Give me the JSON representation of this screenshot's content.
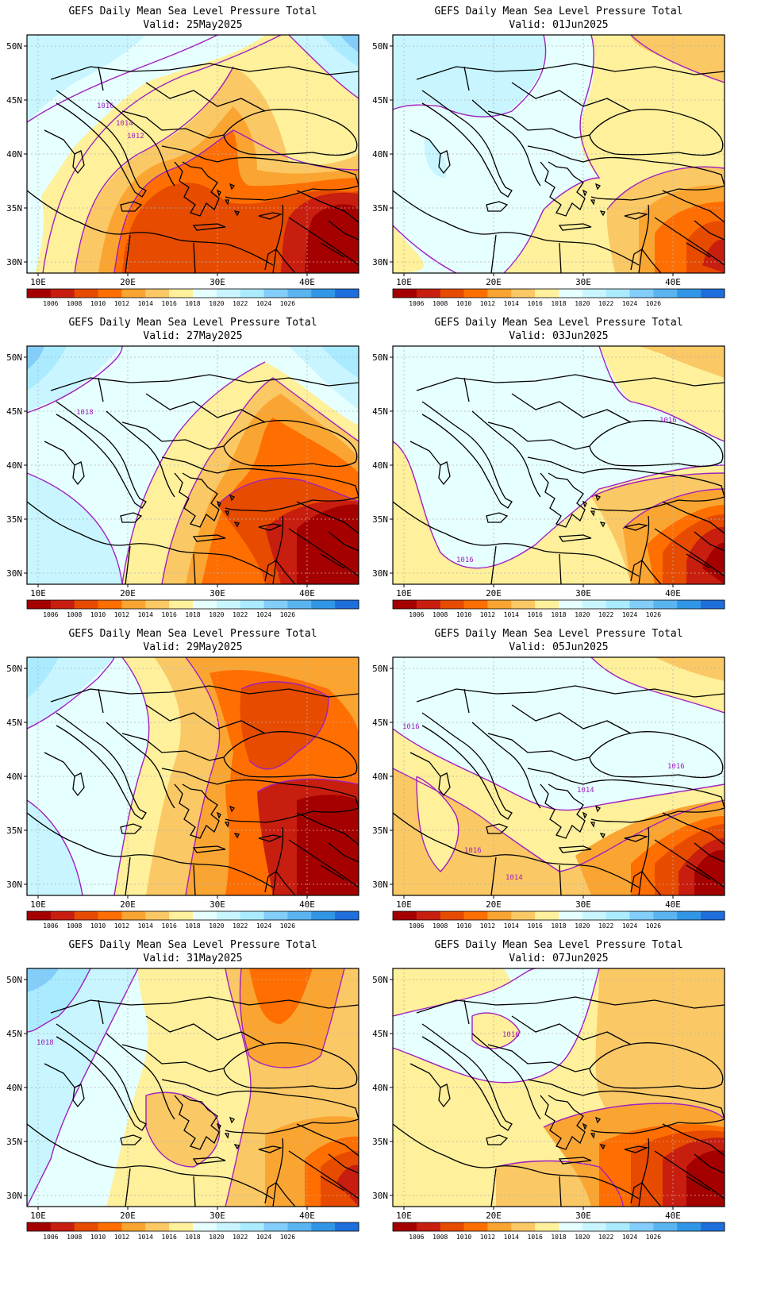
{
  "colors": {
    "levels": [
      "#a50000",
      "#c81e0f",
      "#e64b00",
      "#ff6e00",
      "#faa532",
      "#fac864",
      "#fff09b",
      "#e6ffff",
      "#c8f5ff",
      "#aaebff",
      "#82cdfa",
      "#5ab4f0",
      "#3296e6",
      "#1e6edc"
    ],
    "contour": "#a020c0",
    "coast": "#000000",
    "grid": "#b4b4b4"
  },
  "colorbar_labels": [
    "1006",
    "1008",
    "1010",
    "1012",
    "1014",
    "1016",
    "1018",
    "1020",
    "1022",
    "1024",
    "1026"
  ],
  "x_tick_labels": [
    "10E",
    "20E",
    "30E",
    "40E"
  ],
  "y_tick_labels": [
    "50N",
    "45N",
    "40N",
    "35N",
    "30N"
  ],
  "panels": [
    {
      "id": "p1",
      "title": "GEFS Daily Mean Sea Level Pressure Total",
      "valid": "Valid: 25May2025",
      "ll": "1016",
      "ll2": "1014",
      "ll3": "1012"
    },
    {
      "id": "p2",
      "title": "GEFS Daily Mean Sea Level Pressure Total",
      "valid": "Valid: 01Jun2025"
    },
    {
      "id": "p3",
      "title": "GEFS Daily Mean Sea Level Pressure Total",
      "valid": "Valid: 27May2025",
      "ll": "1018"
    },
    {
      "id": "p4",
      "title": "GEFS Daily Mean Sea Level Pressure Total",
      "valid": "Valid: 03Jun2025",
      "ll": "1016",
      "ll2": "1016"
    },
    {
      "id": "p5",
      "title": "GEFS Daily Mean Sea Level Pressure Total",
      "valid": "Valid: 29May2025"
    },
    {
      "id": "p6",
      "title": "GEFS Daily Mean Sea Level Pressure Total",
      "valid": "Valid: 05Jun2025",
      "ll": "1016",
      "ll2": "1016",
      "ll3": "1014",
      "ll4": "1016",
      "ll5": "1014"
    },
    {
      "id": "p7",
      "title": "GEFS Daily Mean Sea Level Pressure Total",
      "valid": "Valid: 31May2025",
      "ll": "1018"
    },
    {
      "id": "p8",
      "title": "GEFS Daily Mean Sea Level Pressure Total",
      "valid": "Valid: 07Jun2025",
      "ll": "1016"
    }
  ]
}
